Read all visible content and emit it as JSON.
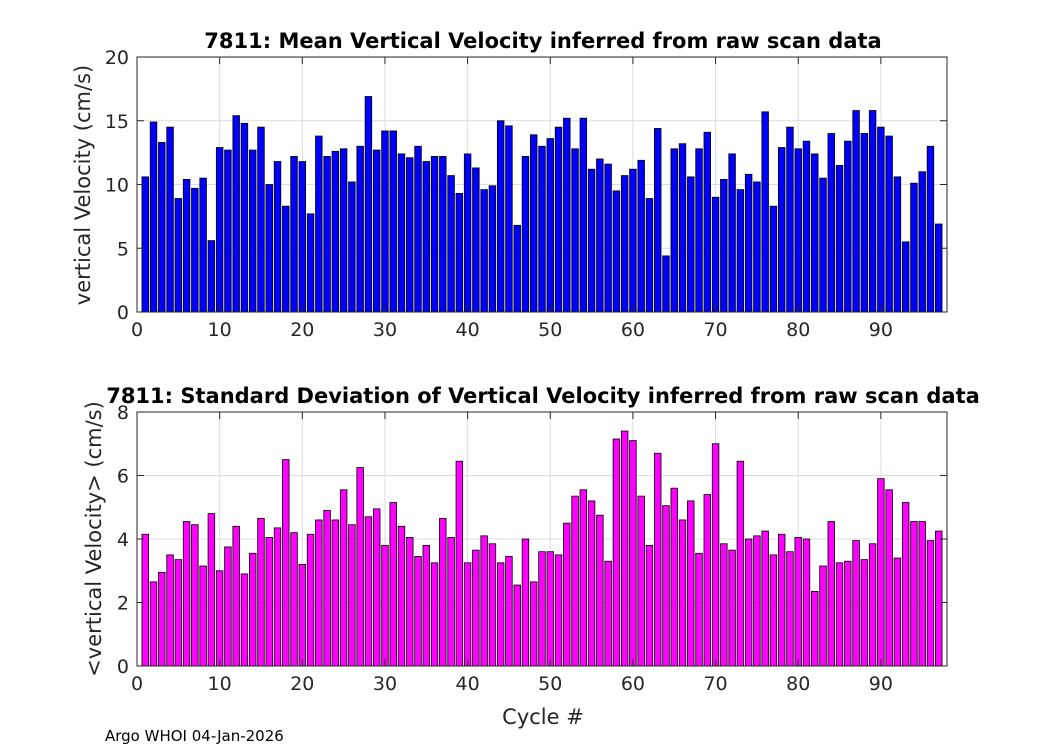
{
  "footer": "Argo WHOI 04-Jan-2026",
  "chart_data": [
    {
      "type": "bar",
      "title": "7811: Mean Vertical Velocity inferred from raw scan data",
      "xlabel": "",
      "ylabel": "vertical Velocity (cm/s)",
      "xlim": [
        0,
        98
      ],
      "ylim": [
        0,
        20
      ],
      "xticks": [
        "0",
        "10",
        "20",
        "30",
        "40",
        "50",
        "60",
        "70",
        "80",
        "90"
      ],
      "yticks": [
        "0",
        "5",
        "10",
        "15",
        "20"
      ],
      "grid": true,
      "color": "#0000ff",
      "x": [
        1,
        2,
        3,
        4,
        5,
        6,
        7,
        8,
        9,
        10,
        11,
        12,
        13,
        14,
        15,
        16,
        17,
        18,
        19,
        20,
        21,
        22,
        23,
        24,
        25,
        26,
        27,
        28,
        29,
        30,
        31,
        32,
        33,
        34,
        35,
        36,
        37,
        38,
        39,
        40,
        41,
        42,
        43,
        44,
        45,
        46,
        47,
        48,
        49,
        50,
        51,
        52,
        53,
        54,
        55,
        56,
        57,
        58,
        59,
        60,
        61,
        62,
        63,
        64,
        65,
        66,
        67,
        68,
        69,
        70,
        71,
        72,
        73,
        74,
        75,
        76,
        77,
        78,
        79,
        80,
        81,
        82,
        83,
        84,
        85,
        86,
        87,
        88,
        89,
        90,
        91,
        92,
        93,
        94,
        95,
        96,
        97
      ],
      "values": [
        10.6,
        14.9,
        13.3,
        14.5,
        8.9,
        10.4,
        9.7,
        10.5,
        5.6,
        12.9,
        12.7,
        15.4,
        14.8,
        12.7,
        14.5,
        10.0,
        11.8,
        8.3,
        12.2,
        11.8,
        7.7,
        13.8,
        12.2,
        12.6,
        12.8,
        10.2,
        13.0,
        16.9,
        12.7,
        14.2,
        14.2,
        12.4,
        12.1,
        13.0,
        11.8,
        12.2,
        12.2,
        10.7,
        9.3,
        12.4,
        11.3,
        9.6,
        9.9,
        15.0,
        14.6,
        6.8,
        12.2,
        13.9,
        13.0,
        13.6,
        14.5,
        15.2,
        12.8,
        15.2,
        11.2,
        12.0,
        11.6,
        9.5,
        10.7,
        11.2,
        11.9,
        8.9,
        14.4,
        4.4,
        12.8,
        13.2,
        10.6,
        12.8,
        14.1,
        9.0,
        10.4,
        12.4,
        9.6,
        10.8,
        10.2,
        15.7,
        8.3,
        12.9,
        14.5,
        12.8,
        13.4,
        12.4,
        10.5,
        14.0,
        11.5,
        13.4,
        15.8,
        14.0,
        15.8,
        14.5,
        13.8,
        10.6,
        5.5,
        10.1,
        11.0,
        13.0,
        6.9
      ]
    },
    {
      "type": "bar",
      "title": "7811: Standard Deviation of Vertical Velocity inferred from raw scan data",
      "xlabel": "Cycle #",
      "ylabel": "<vertical Velocity> (cm/s)",
      "xlim": [
        0,
        98
      ],
      "ylim": [
        0,
        8
      ],
      "xticks": [
        "0",
        "10",
        "20",
        "30",
        "40",
        "50",
        "60",
        "70",
        "80",
        "90"
      ],
      "yticks": [
        "0",
        "2",
        "4",
        "6",
        "8"
      ],
      "grid": true,
      "color": "#ff00ff",
      "x": [
        1,
        2,
        3,
        4,
        5,
        6,
        7,
        8,
        9,
        10,
        11,
        12,
        13,
        14,
        15,
        16,
        17,
        18,
        19,
        20,
        21,
        22,
        23,
        24,
        25,
        26,
        27,
        28,
        29,
        30,
        31,
        32,
        33,
        34,
        35,
        36,
        37,
        38,
        39,
        40,
        41,
        42,
        43,
        44,
        45,
        46,
        47,
        48,
        49,
        50,
        51,
        52,
        53,
        54,
        55,
        56,
        57,
        58,
        59,
        60,
        61,
        62,
        63,
        64,
        65,
        66,
        67,
        68,
        69,
        70,
        71,
        72,
        73,
        74,
        75,
        76,
        77,
        78,
        79,
        80,
        81,
        82,
        83,
        84,
        85,
        86,
        87,
        88,
        89,
        90,
        91,
        92,
        93,
        94,
        95,
        96,
        97
      ],
      "values": [
        4.15,
        2.65,
        2.95,
        3.5,
        3.35,
        4.55,
        4.45,
        3.15,
        4.8,
        3.0,
        3.75,
        4.4,
        2.9,
        3.55,
        4.65,
        4.05,
        4.35,
        6.5,
        4.2,
        3.2,
        4.15,
        4.6,
        4.9,
        4.6,
        5.55,
        4.45,
        6.25,
        4.7,
        4.95,
        3.8,
        5.15,
        4.4,
        4.05,
        3.45,
        3.8,
        3.25,
        4.65,
        4.05,
        6.45,
        3.25,
        3.65,
        4.1,
        3.85,
        3.25,
        3.45,
        2.55,
        4.0,
        2.65,
        3.6,
        3.6,
        3.5,
        4.5,
        5.35,
        5.55,
        5.2,
        4.75,
        3.3,
        7.15,
        7.4,
        7.1,
        5.35,
        3.8,
        6.7,
        5.05,
        5.6,
        4.6,
        5.2,
        3.55,
        5.4,
        7.0,
        3.85,
        3.65,
        6.45,
        4.0,
        4.1,
        4.25,
        3.5,
        4.15,
        3.6,
        4.05,
        4.0,
        2.35,
        3.15,
        4.55,
        3.25,
        3.3,
        3.95,
        3.35,
        3.85,
        5.9,
        5.55,
        3.4,
        5.15,
        4.55,
        4.55,
        3.95,
        4.25
      ]
    }
  ]
}
